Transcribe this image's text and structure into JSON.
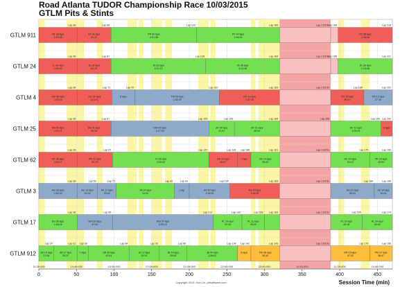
{
  "title": "Road Atlanta TUDOR Championship Race 10/03/2015",
  "subtitle": "GTLM Pits & Stints",
  "footer": "Copyright 2015, Ken Lin, prisoftware.com",
  "chart_data": {
    "type": "bar",
    "orientation": "horizontal-timeline",
    "x": {
      "label": "Session Time (min)",
      "range": [
        0,
        470
      ],
      "ticks": [
        0,
        50,
        100,
        150,
        200,
        250,
        300,
        350,
        400,
        450
      ]
    },
    "rows": [
      "GTLM 911",
      "GTLM 24",
      "GTLM 4",
      "GTLM 25",
      "GTLM 62",
      "GTLM 3",
      "GTLM 17",
      "GTLM 912"
    ],
    "clock_ticks": [
      {
        "t": 0,
        "label": "11:30:000"
      },
      {
        "t": 50,
        "label": "14:40:000"
      },
      {
        "t": 100,
        "label": "15:00:000"
      },
      {
        "t": 150,
        "label": "17:00:000"
      },
      {
        "t": 200,
        "label": "21:00:000"
      },
      {
        "t": 250,
        "label": "22:00:000"
      },
      {
        "t": 300,
        "label": "23:00:000"
      },
      {
        "t": 350,
        "label": "14:40:000"
      },
      {
        "t": 400,
        "label": "11:30:000"
      },
      {
        "t": 450,
        "label": "14:40:000"
      }
    ],
    "caution_periods": [
      [
        0,
        8
      ],
      [
        37,
        60
      ],
      [
        77,
        85
      ],
      [
        118,
        130
      ],
      [
        133,
        139
      ],
      [
        150,
        164
      ],
      [
        168,
        177
      ],
      [
        212,
        226
      ],
      [
        228,
        235
      ],
      [
        282,
        288
      ],
      [
        292,
        320
      ],
      [
        330,
        342
      ],
      [
        373,
        385
      ],
      [
        398,
        406
      ],
      [
        428,
        440
      ]
    ],
    "red_flag": [
      320,
      388
    ],
    "series": [
      {
        "row": "GTLM 911",
        "stints": [
          {
            "start": 0,
            "end": 51,
            "color": "#ef5f58",
            "label": "NT 38 laps",
            "sub": "1:03:18",
            "pit": "Lap 38"
          },
          {
            "start": 51,
            "end": 96,
            "color": "#ef5f58",
            "label": "NT 31 laps",
            "sub": "51:12",
            "pit": "Lap 69"
          },
          {
            "start": 96,
            "end": 210,
            "color": "#72e050",
            "label": "PP 54 laps",
            "sub": "2:01:36",
            "pit": "Lap 123"
          },
          {
            "start": 210,
            "end": 320,
            "color": "#72e050",
            "label": "PP 42 laps",
            "sub": "1:34:00",
            "pit": "Lap 165"
          },
          {
            "start": 320,
            "end": 388,
            "color": "#f8c0c0",
            "label": "",
            "sub": "",
            "pit": "Lap 1:03:51"
          },
          {
            "start": 388,
            "end": 398,
            "color": "#f8c0c0",
            "label": "",
            "sub": "",
            "pit": "Lap 180"
          },
          {
            "start": 398,
            "end": 470,
            "color": "#ef5f58",
            "label": "NT 38 laps",
            "sub": "1:18:06",
            "pit": "Lap 218"
          }
        ]
      },
      {
        "row": "GTLM 24",
        "stints": [
          {
            "start": 0,
            "end": 51,
            "color": "#ef5f58",
            "label": "LL 36 laps",
            "sub": "1:02:30",
            "pit": "Lap 36"
          },
          {
            "start": 51,
            "end": 96,
            "color": "#ef5f58",
            "label": "JE 31 laps",
            "sub": "51:19",
            "pit": "Lap 67"
          },
          {
            "start": 96,
            "end": 222,
            "color": "#72e050",
            "label": "JE 61 laps",
            "sub": "2:11:13",
            "pit": "Lap 128"
          },
          {
            "start": 222,
            "end": 320,
            "color": "#72e050",
            "label": "JK 36 laps",
            "sub": "1:14:48",
            "pit": "Lap 164"
          },
          {
            "start": 320,
            "end": 388,
            "color": "#f8c0c0",
            "label": "",
            "sub": "",
            "pit": "Lap 1:03:51"
          },
          {
            "start": 388,
            "end": 398,
            "color": "#f8c0c0",
            "label": "",
            "sub": "",
            "pit": "Lap 185"
          },
          {
            "start": 398,
            "end": 470,
            "color": "#72e050",
            "label": "JK 36 laps",
            "sub": "1:18:48",
            "pit": "Lap 221"
          }
        ]
      },
      {
        "row": "GTLM 4",
        "stints": [
          {
            "start": 0,
            "end": 51,
            "color": "#ef5f58",
            "label": "OG 36 laps",
            "sub": "1:02:24",
            "pit": "Lap 36"
          },
          {
            "start": 51,
            "end": 97,
            "color": "#ef5f58",
            "label": "OG 35 laps",
            "sub": "1:01:01",
            "pit": "Lap 71"
          },
          {
            "start": 97,
            "end": 128,
            "color": "#8eaacb",
            "label": "8 laps",
            "sub": "",
            "pit": "Lap 79"
          },
          {
            "start": 128,
            "end": 240,
            "color": "#8eaacb",
            "label": "TM 53 laps",
            "sub": "1:42:29",
            "pit": "Lap 132"
          },
          {
            "start": 240,
            "end": 320,
            "color": "#ef5f58",
            "label": "OG 31 laps",
            "sub": "1:07:28",
            "pit": "Lap 163"
          },
          {
            "start": 320,
            "end": 388,
            "color": "#f8c0c0",
            "label": "",
            "sub": "",
            "pit": "Lap 1:03:51"
          },
          {
            "start": 388,
            "end": 432,
            "color": "#ef5f58",
            "label": "OG 26 laps",
            "sub": "56:47",
            "pit": "Lap 189"
          },
          {
            "start": 432,
            "end": 470,
            "color": "#8eaacb",
            "label": "TM 12 laps",
            "sub": "27:30",
            "pit": "Lap 201"
          }
        ]
      },
      {
        "row": "GTLM 25",
        "stints": [
          {
            "start": 0,
            "end": 51,
            "color": "#ef5f58",
            "label": "BA 36 laps",
            "sub": "1:02:42",
            "pit": "Lap 36"
          },
          {
            "start": 51,
            "end": 96,
            "color": "#ef5f58",
            "label": "BA 31 laps",
            "sub": "51:26",
            "pit": "Lap 67"
          },
          {
            "start": 96,
            "end": 226,
            "color": "#8eaacb",
            "label": "DW 42 laps",
            "sub": "1:47:25",
            "pit": "Lap 109"
          },
          {
            "start": 226,
            "end": 260,
            "color": "#72e050",
            "label": "AF 34 laps",
            "sub": "41:01",
            "pit": "Lap 143"
          },
          {
            "start": 260,
            "end": 320,
            "color": "#72e050",
            "label": "AF 21 laps",
            "sub": "45:04",
            "pit": "Lap 164"
          },
          {
            "start": 320,
            "end": 388,
            "color": "#f8c0c0",
            "label": "",
            "sub": "",
            "pit": "Lap 165"
          },
          {
            "start": 388,
            "end": 455,
            "color": "#72e050",
            "label": "AF 31 laps",
            "sub": "1:05:43",
            "pit": "Lap 196"
          },
          {
            "start": 455,
            "end": 470,
            "color": "#ef5f58",
            "label": "6 laps",
            "sub": "",
            "pit": "Lap 202"
          }
        ]
      },
      {
        "row": "GTLM 62",
        "stints": [
          {
            "start": 0,
            "end": 51,
            "color": "#ef5f58",
            "label": "GF 36 laps",
            "sub": "1:02:17",
            "pit": "Lap 36"
          },
          {
            "start": 51,
            "end": 98,
            "color": "#ef5f58",
            "label": "PK 31 laps",
            "sub": "51:23",
            "pit": "Lap 67"
          },
          {
            "start": 98,
            "end": 226,
            "color": "#72e050",
            "label": "TV 60 laps",
            "sub": "2:09:34",
            "pit": "Lap 127"
          },
          {
            "start": 226,
            "end": 264,
            "color": "#ef5f58",
            "label": "GF 14 laps",
            "sub": "30:57",
            "pit": "Lap 141"
          },
          {
            "start": 264,
            "end": 282,
            "color": "#ef5f58",
            "label": "7 laps",
            "sub": "",
            "pit": "Lap 148"
          },
          {
            "start": 282,
            "end": 320,
            "color": "#72e050",
            "label": "GF 13 laps",
            "sub": "26:42",
            "pit": "Lap 161"
          },
          {
            "start": 320,
            "end": 388,
            "color": "#f8c0c0",
            "label": "",
            "sub": "",
            "pit": "Lap 1:03:51"
          },
          {
            "start": 388,
            "end": 440,
            "color": "#72e050",
            "label": "GF 14 laps",
            "sub": "34:12",
            "pit": "Lap 175"
          },
          {
            "start": 440,
            "end": 470,
            "color": "#72e050",
            "label": "PK 24 laps",
            "sub": "49:03",
            "pit": "Lap 199"
          }
        ]
      },
      {
        "row": "GTLM 3",
        "stints": [
          {
            "start": 0,
            "end": 51,
            "color": "#8eaacb",
            "label": "AG 36 laps",
            "sub": "1:02:33",
            "pit": "Lap 36"
          },
          {
            "start": 51,
            "end": 78,
            "color": "#8eaacb",
            "label": "AG 19 laps",
            "sub": "20:34",
            "pit": "Lap 55"
          },
          {
            "start": 78,
            "end": 103,
            "color": "#8eaacb",
            "label": "JM 17 laps",
            "sub": "29:44",
            "pit": "Lap 72"
          },
          {
            "start": 103,
            "end": 180,
            "color": "#72e050",
            "label": "JM 20 laps",
            "sub": "20:00",
            "pit": "Lap 92"
          },
          {
            "start": 180,
            "end": 200,
            "color": "#8eaacb",
            "label": "1 lap",
            "sub": "",
            "pit": "Lap 93"
          },
          {
            "start": 200,
            "end": 254,
            "color": "#8eaacb",
            "label": "JM 49 laps",
            "sub": "1:16:29",
            "pit": "Lap 134"
          },
          {
            "start": 254,
            "end": 320,
            "color": "#ef5f58",
            "label": "AG 29 laps",
            "sub": "1:04:29",
            "pit": "Lap 163"
          },
          {
            "start": 320,
            "end": 388,
            "color": "#f8c0c0",
            "label": "",
            "sub": "",
            "pit": "Lap 1:03:51"
          },
          {
            "start": 388,
            "end": 446,
            "color": "#8eaacb",
            "label": "AG 22 laps",
            "sub": "50:01",
            "pit": "Lap 184"
          },
          {
            "start": 446,
            "end": 470,
            "color": "#8eaacb",
            "label": "JM 14 laps",
            "sub": "30:24",
            "pit": "Lap 198"
          }
        ]
      },
      {
        "row": "GTLM 17",
        "stints": [
          {
            "start": 0,
            "end": 51,
            "color": "#72e050",
            "label": "BS 36 laps",
            "sub": "1:08:18",
            "pit": "Lap 36"
          },
          {
            "start": 51,
            "end": 98,
            "color": "#8eaacb",
            "label": "WH 30 laps",
            "sub": "47:42",
            "pit": "Lap 66"
          },
          {
            "start": 98,
            "end": 232,
            "color": "#8eaacb",
            "label": "WH 57 laps",
            "sub": "2:05:12",
            "pit": "Lap 123"
          },
          {
            "start": 232,
            "end": 270,
            "color": "#72e050",
            "label": "PL 19 laps",
            "sub": "29:25",
            "pit": "Lap 142"
          },
          {
            "start": 270,
            "end": 300,
            "color": "#72e050",
            "label": "PL 11 laps",
            "sub": "26:03",
            "pit": "Lap 153"
          },
          {
            "start": 300,
            "end": 320,
            "color": "#72e050",
            "label": "",
            "sub": "",
            "pit": "Lap 163"
          },
          {
            "start": 320,
            "end": 388,
            "color": "#f8c0c0",
            "label": "",
            "sub": "",
            "pit": "Lap 1:03:51"
          },
          {
            "start": 388,
            "end": 430,
            "color": "#72e050",
            "label": "PL 10 laps",
            "sub": "26:18",
            "pit": "Lap 164"
          },
          {
            "start": 430,
            "end": 470,
            "color": "#72e050",
            "label": "PL 39 laps",
            "sub": "50:52",
            "pit": "Lap 174"
          }
        ]
      },
      {
        "row": "GTLM 912",
        "stints": [
          {
            "start": 0,
            "end": 20,
            "color": "#72e050",
            "label": "SB 14 laps",
            "sub": "27:06",
            "pit": "Lap 14"
          },
          {
            "start": 20,
            "end": 51,
            "color": "#72e050",
            "label": "SB 17 laps",
            "sub": "30:37",
            "pit": "Lap 31"
          },
          {
            "start": 51,
            "end": 66,
            "color": "#72e050",
            "label": "7 laps",
            "sub": "",
            "pit": "Lap 38"
          },
          {
            "start": 66,
            "end": 120,
            "color": "#72e050",
            "label": "SB 26 laps",
            "sub": "42:54",
            "pit": "Lap 64"
          },
          {
            "start": 120,
            "end": 160,
            "color": "#72e050",
            "label": "JB 12 laps",
            "sub": "25:24",
            "pit": "Lap 76"
          },
          {
            "start": 160,
            "end": 197,
            "color": "#72e050",
            "label": "JB 14 laps",
            "sub": "25:08",
            "pit": "Lap 90"
          },
          {
            "start": 197,
            "end": 264,
            "color": "#72e050",
            "label": "JB 44 laps",
            "sub": "1:26:01",
            "pit": "Lap 134"
          },
          {
            "start": 264,
            "end": 282,
            "color": "#ffbd3c",
            "label": "8 laps",
            "sub": "",
            "pit": "Lap 142"
          },
          {
            "start": 282,
            "end": 320,
            "color": "#ffbd3c",
            "label": "FM 36 laps",
            "sub": "36:30",
            "pit": "Lap 143"
          },
          {
            "start": 320,
            "end": 388,
            "color": "#f8c0c0",
            "label": "",
            "sub": "",
            "pit": "Lap 1:03:51"
          },
          {
            "start": 388,
            "end": 440,
            "color": "#ffbd3c",
            "label": "FM 19 laps",
            "sub": "47:30",
            "pit": "Lap 179"
          },
          {
            "start": 440,
            "end": 470,
            "color": "#ffbd3c",
            "label": "FM 17 laps",
            "sub": "38:47",
            "pit": "Lap 196"
          }
        ]
      }
    ]
  }
}
